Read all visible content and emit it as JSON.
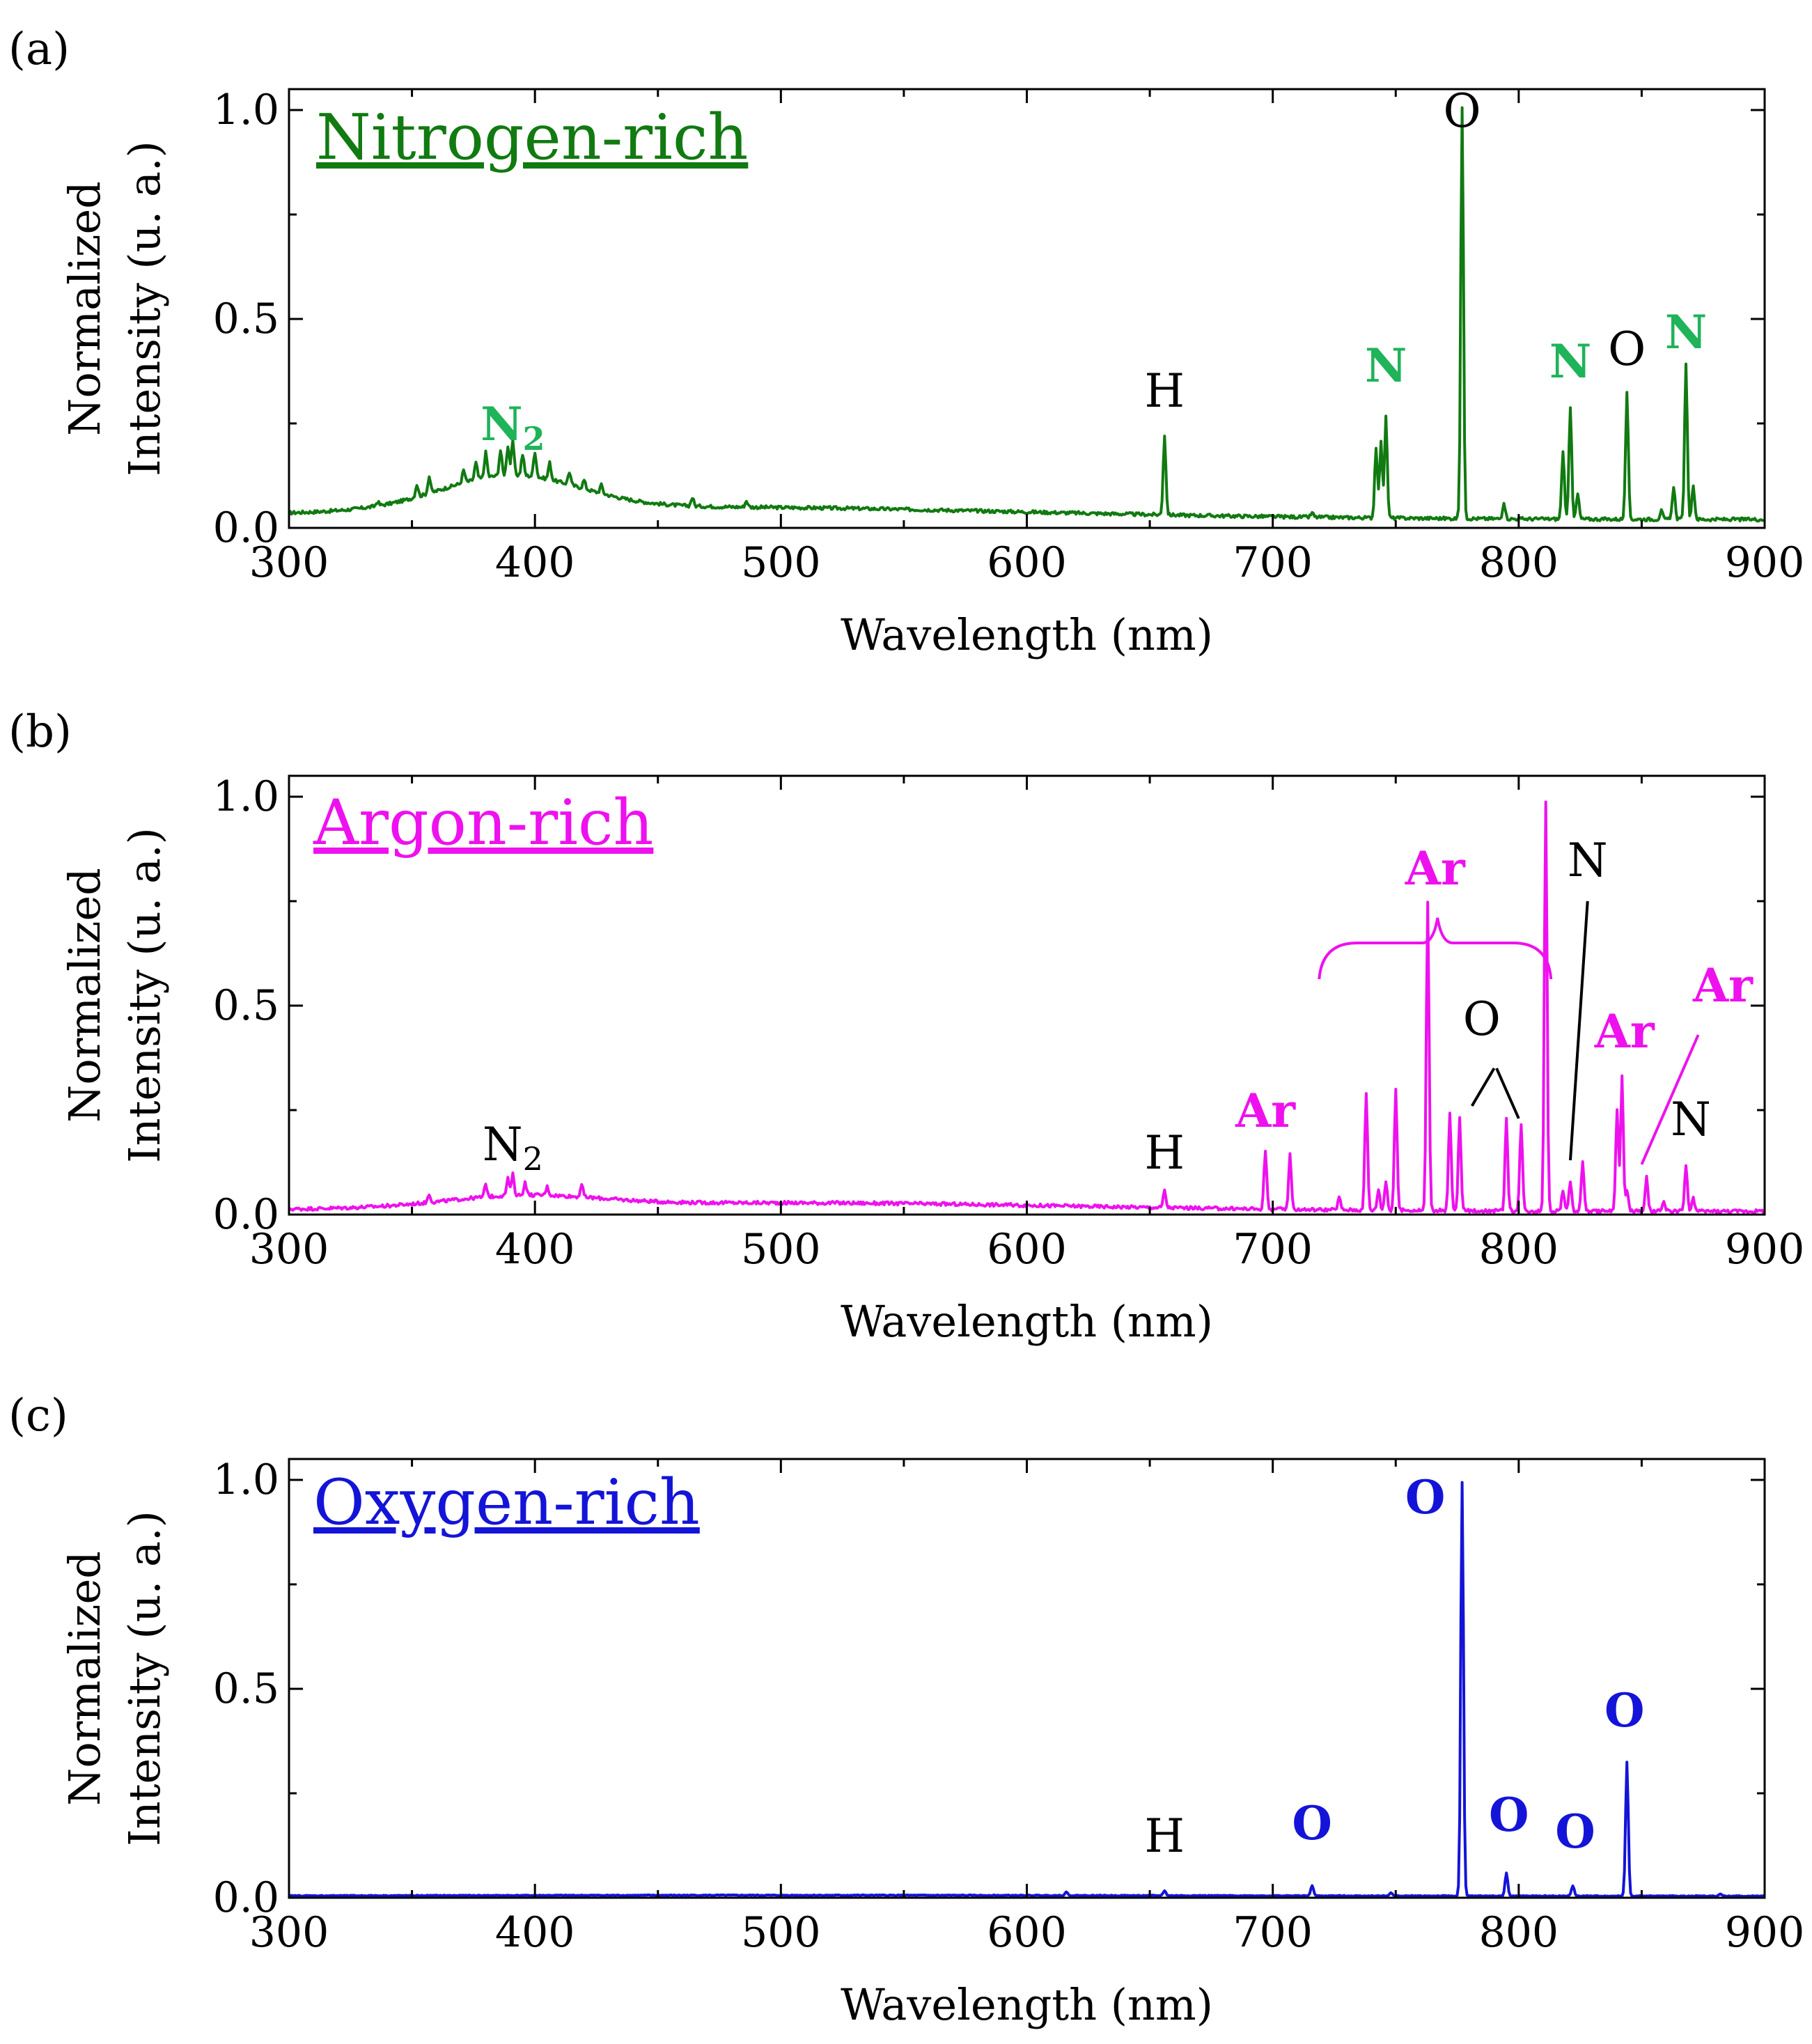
{
  "chart_data": [
    {
      "panel_label": "(a)",
      "type": "line",
      "title": "Nitrogen-rich",
      "color": "#117a11",
      "xlabel": "Wavelength (nm)",
      "ylabel_lines": [
        "Normalized",
        "Intensity (u. a.)"
      ],
      "xlim": [
        300,
        900
      ],
      "ylim": [
        0,
        1.05
      ],
      "xticks": [
        300,
        400,
        500,
        600,
        700,
        800,
        900
      ],
      "yticks": [
        0.0,
        0.5,
        1.0
      ],
      "grid": false,
      "baseline": 0.02,
      "bands": [
        {
          "x": 390,
          "sigma": 28,
          "h": 0.08
        },
        {
          "x": 460,
          "sigma": 140,
          "h": 0.03
        }
      ],
      "peaks": [
        [
          336,
          0.01
        ],
        [
          352,
          0.03
        ],
        [
          357,
          0.04
        ],
        [
          371,
          0.03
        ],
        [
          376,
          0.04
        ],
        [
          380,
          0.06
        ],
        [
          386,
          0.06
        ],
        [
          389,
          0.07
        ],
        [
          391,
          0.08
        ],
        [
          395,
          0.05
        ],
        [
          400,
          0.06
        ],
        [
          406,
          0.04
        ],
        [
          414,
          0.03
        ],
        [
          420,
          0.02
        ],
        [
          427,
          0.02
        ],
        [
          464,
          0.02
        ],
        [
          486,
          0.015
        ],
        [
          656,
          0.19
        ],
        [
          716,
          0.01
        ],
        [
          742,
          0.17
        ],
        [
          744,
          0.18
        ],
        [
          746,
          0.24
        ],
        [
          777,
          0.98
        ],
        [
          794,
          0.04
        ],
        [
          818,
          0.16
        ],
        [
          821,
          0.27
        ],
        [
          824,
          0.06
        ],
        [
          844,
          0.3
        ],
        [
          858,
          0.02
        ],
        [
          863,
          0.08
        ],
        [
          868,
          0.37
        ],
        [
          871,
          0.08
        ]
      ],
      "annotations": [
        {
          "text": "O",
          "sub": "",
          "x": 777,
          "y": 0.96,
          "color": "#000000",
          "bold": false
        },
        {
          "text": "H",
          "sub": "",
          "x": 656,
          "y": 0.29,
          "color": "#000000",
          "bold": false
        },
        {
          "text": "N",
          "sub": "",
          "x": 746,
          "y": 0.35,
          "color": "#1fb35a",
          "bold": true
        },
        {
          "text": "N",
          "sub": "",
          "x": 821,
          "y": 0.36,
          "color": "#1fb35a",
          "bold": true
        },
        {
          "text": "O",
          "sub": "",
          "x": 844,
          "y": 0.39,
          "color": "#000000",
          "bold": false
        },
        {
          "text": "N",
          "sub": "",
          "x": 868,
          "y": 0.43,
          "color": "#1fb35a",
          "bold": true
        },
        {
          "text": "N",
          "sub": "2",
          "x": 391,
          "y": 0.21,
          "color": "#1fb35a",
          "bold": true
        }
      ]
    },
    {
      "panel_label": "(b)",
      "type": "line",
      "title": "Argon-rich",
      "color": "#ee11ee",
      "xlabel": "Wavelength (nm)",
      "ylabel_lines": [
        "Normalized",
        "Intensity (u. a.)"
      ],
      "xlim": [
        300,
        900
      ],
      "ylim": [
        0,
        1.05
      ],
      "xticks": [
        300,
        400,
        500,
        600,
        700,
        800,
        900
      ],
      "yticks": [
        0.0,
        0.5,
        1.0
      ],
      "grid": false,
      "baseline": 0.008,
      "bands": [
        {
          "x": 395,
          "sigma": 30,
          "h": 0.025
        },
        {
          "x": 500,
          "sigma": 120,
          "h": 0.02
        }
      ],
      "peaks": [
        [
          357,
          0.02
        ],
        [
          380,
          0.03
        ],
        [
          389,
          0.04
        ],
        [
          391,
          0.05
        ],
        [
          396,
          0.03
        ],
        [
          405,
          0.02
        ],
        [
          419,
          0.03
        ],
        [
          656,
          0.04
        ],
        [
          697,
          0.14
        ],
        [
          707,
          0.13
        ],
        [
          727,
          0.03
        ],
        [
          738,
          0.28
        ],
        [
          743,
          0.05
        ],
        [
          746,
          0.07
        ],
        [
          750,
          0.29
        ],
        [
          763,
          0.74
        ],
        [
          772,
          0.23
        ],
        [
          776,
          0.22
        ],
        [
          795,
          0.22
        ],
        [
          801,
          0.21
        ],
        [
          811,
          0.98
        ],
        [
          818,
          0.05
        ],
        [
          821,
          0.07
        ],
        [
          826,
          0.12
        ],
        [
          840,
          0.24
        ],
        [
          842,
          0.32
        ],
        [
          844,
          0.05
        ],
        [
          852,
          0.08
        ],
        [
          859,
          0.02
        ],
        [
          868,
          0.11
        ],
        [
          871,
          0.03
        ]
      ],
      "annotations": [
        {
          "text": "N",
          "sub": "2",
          "x": 391,
          "y": 0.13,
          "color": "#000000",
          "bold": false
        },
        {
          "text": "H",
          "sub": "",
          "x": 656,
          "y": 0.11,
          "color": "#000000",
          "bold": false
        },
        {
          "text": "Ar",
          "sub": "",
          "x": 697,
          "y": 0.21,
          "color": "#ee11ee",
          "bold": true
        },
        {
          "text": "Ar",
          "sub": "",
          "x": 766,
          "y": 0.79,
          "color": "#ee11ee",
          "bold": true
        },
        {
          "text": "O",
          "sub": "",
          "x": 785,
          "y": 0.43,
          "color": "#000000",
          "bold": false
        },
        {
          "text": "N",
          "sub": "",
          "x": 828,
          "y": 0.81,
          "color": "#000000",
          "bold": false
        },
        {
          "text": "Ar",
          "sub": "",
          "x": 843,
          "y": 0.4,
          "color": "#ee11ee",
          "bold": true
        },
        {
          "text": "Ar",
          "sub": "",
          "x": 883,
          "y": 0.51,
          "color": "#ee11ee",
          "bold": true
        },
        {
          "text": "N",
          "sub": "",
          "x": 870,
          "y": 0.19,
          "color": "#000000",
          "bold": false
        }
      ],
      "leader_lines": [
        {
          "x1": 790,
          "y1": 0.35,
          "x2": 781,
          "y2": 0.26,
          "color": "#000000"
        },
        {
          "x1": 791,
          "y1": 0.35,
          "x2": 800,
          "y2": 0.23,
          "color": "#000000"
        },
        {
          "x1": 828,
          "y1": 0.75,
          "x2": 821,
          "y2": 0.13,
          "color": "#000000"
        },
        {
          "x1": 873,
          "y1": 0.43,
          "x2": 850,
          "y2": 0.12,
          "color": "#ee11ee"
        }
      ],
      "brace": {
        "x1": 720,
        "x2": 812,
        "y": 0.65,
        "peak_x": 767,
        "color": "#ee11ee"
      }
    },
    {
      "panel_label": "(c)",
      "type": "line",
      "title": "Oxygen-rich",
      "color": "#1414d8",
      "xlabel": "Wavelength (nm)",
      "ylabel_lines": [
        "Normalized",
        "Intensity (u. a.)"
      ],
      "xlim": [
        300,
        900
      ],
      "ylim": [
        0,
        1.05
      ],
      "xticks": [
        300,
        400,
        500,
        600,
        700,
        800,
        900
      ],
      "yticks": [
        0.0,
        0.5,
        1.0
      ],
      "grid": false,
      "baseline": 0.004,
      "bands": [
        {
          "x": 500,
          "sigma": 150,
          "h": 0.002
        }
      ],
      "peaks": [
        [
          616,
          0.008
        ],
        [
          656,
          0.012
        ],
        [
          716,
          0.025
        ],
        [
          748,
          0.008
        ],
        [
          777,
          0.99
        ],
        [
          795,
          0.055
        ],
        [
          822,
          0.025
        ],
        [
          844,
          0.32
        ],
        [
          882,
          0.005
        ]
      ],
      "annotations": [
        {
          "text": "H",
          "sub": "",
          "x": 656,
          "y": 0.11,
          "color": "#000000",
          "bold": false
        },
        {
          "text": "O",
          "sub": "",
          "x": 716,
          "y": 0.14,
          "color": "#1414d8",
          "bold": true
        },
        {
          "text": "O",
          "sub": "",
          "x": 762,
          "y": 0.92,
          "color": "#1414d8",
          "bold": true
        },
        {
          "text": "O",
          "sub": "",
          "x": 796,
          "y": 0.16,
          "color": "#1414d8",
          "bold": true
        },
        {
          "text": "O",
          "sub": "",
          "x": 823,
          "y": 0.12,
          "color": "#1414d8",
          "bold": true
        },
        {
          "text": "O",
          "sub": "",
          "x": 843,
          "y": 0.41,
          "color": "#1414d8",
          "bold": true
        }
      ]
    }
  ]
}
